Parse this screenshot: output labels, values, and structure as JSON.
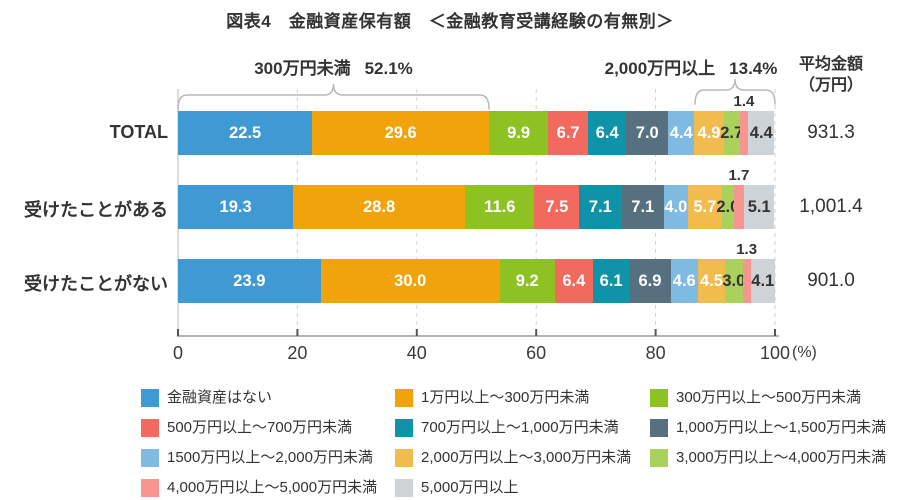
{
  "title": "図表4　金融資産保有額　＜金融教育受講経験の有無別＞",
  "annotations": {
    "left_brace": {
      "label": "300万円未満",
      "value": "52.1%",
      "from_pct": 0,
      "to_pct": 52.1
    },
    "right_brace": {
      "label": "2,000万円以上",
      "value": "13.4%",
      "from_pct": 86.6,
      "to_pct": 100
    },
    "avg_title": "平均金額",
    "avg_unit": "（万円）"
  },
  "chart_data": {
    "type": "bar",
    "subtype": "horizontal-stacked",
    "unit": "%",
    "categories": [
      "TOTAL",
      "受けたことがある",
      "受けたことがない"
    ],
    "averages": [
      "931.3",
      "1,001.4",
      "901.0"
    ],
    "series": [
      {
        "name": "金融資産はない",
        "color": "#3f9ad3",
        "label_style": "inside-white",
        "values": [
          22.5,
          19.3,
          23.9
        ]
      },
      {
        "name": "1万円以上～300万円未満",
        "color": "#f0a30b",
        "label_style": "inside-white",
        "values": [
          29.6,
          28.8,
          30.0
        ]
      },
      {
        "name": "300万円以上～500万円未満",
        "color": "#8cc221",
        "label_style": "inside-white",
        "values": [
          9.9,
          11.6,
          9.2
        ]
      },
      {
        "name": "500万円以上～700万円未満",
        "color": "#f2695e",
        "label_style": "inside-white",
        "values": [
          6.7,
          7.5,
          6.4
        ]
      },
      {
        "name": "700万円以上～1,000万円未満",
        "color": "#0f93a9",
        "label_style": "inside-white",
        "values": [
          6.4,
          7.1,
          6.1
        ]
      },
      {
        "name": "1,000万円以上～1,500万円未満",
        "color": "#56707f",
        "label_style": "inside-white",
        "values": [
          7.0,
          7.1,
          6.9
        ]
      },
      {
        "name": "1500万円以上～2,000万円未満",
        "color": "#7fbae2",
        "label_style": "inside-white",
        "values": [
          4.4,
          4.0,
          4.6
        ]
      },
      {
        "name": "2,000万円以上～3,000万円未満",
        "color": "#f1bc4d",
        "label_style": "inside-white",
        "values": [
          4.9,
          5.7,
          4.5
        ]
      },
      {
        "name": "3,000万円以上～4,000万円未満",
        "color": "#a9d15c",
        "label_style": "inside-dark",
        "values": [
          2.7,
          2.0,
          3.0
        ]
      },
      {
        "name": "4,000万円以上～5,000万円未満",
        "color": "#f79690",
        "label_style": "above",
        "values": [
          1.4,
          1.7,
          1.3
        ]
      },
      {
        "name": "5,000万円以上",
        "color": "#cdd3d7",
        "label_style": "inside-dark",
        "values": [
          4.4,
          5.1,
          4.1
        ]
      }
    ],
    "x_axis": {
      "ticks": [
        0,
        20,
        40,
        60,
        80,
        100
      ],
      "suffix": "(%)",
      "min": 0,
      "max": 100,
      "gridlines": "dashed"
    },
    "legend": {
      "position": "bottom",
      "columns": 3
    },
    "label_dark_color": "#333333",
    "label_light_color": "#ffffff"
  }
}
